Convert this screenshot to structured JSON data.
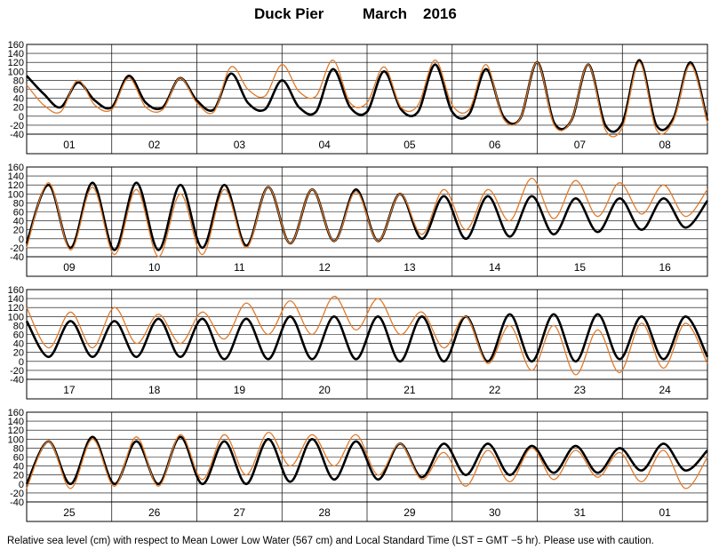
{
  "title": {
    "station": "Duck Pier",
    "month": "March",
    "year": "2016"
  },
  "caption": "Relative sea level (cm) with respect to Mean Lower Low Water (567 cm) and Local Standard Time (LST = GMT −5 hr). Please use with caution.",
  "colors": {
    "predicted": "#000000",
    "observed": "#e07a2a",
    "grid": "#000000"
  },
  "chart_data": {
    "type": "line",
    "ylabel": "",
    "ylim": [
      -40,
      160
    ],
    "yticks": [
      160,
      140,
      120,
      100,
      80,
      60,
      40,
      20,
      0,
      -20,
      -40
    ],
    "grid": true,
    "series": [
      {
        "name": "",
        "role": "predicted"
      },
      {
        "name": "",
        "role": "observed"
      }
    ],
    "panels": [
      {
        "days": [
          "01",
          "02",
          "03",
          "04",
          "05",
          "06",
          "07",
          "08"
        ],
        "predicted": [
          90,
          50,
          20,
          75,
          35,
          20,
          90,
          30,
          20,
          85,
          35,
          15,
          95,
          30,
          15,
          80,
          20,
          10,
          105,
          20,
          10,
          100,
          15,
          10,
          115,
          10,
          5,
          105,
          0,
          -5,
          120,
          -15,
          -10,
          115,
          -20,
          -15,
          125,
          -20,
          -5,
          120,
          -10
        ],
        "observed": [
          70,
          25,
          10,
          80,
          25,
          15,
          85,
          20,
          15,
          85,
          30,
          10,
          110,
          60,
          45,
          115,
          55,
          45,
          125,
          30,
          30,
          110,
          20,
          25,
          125,
          25,
          15,
          115,
          -5,
          -5,
          120,
          -20,
          -10,
          115,
          -30,
          -25,
          120,
          -30,
          -10,
          115,
          -15
        ]
      },
      {
        "days": [
          "09",
          "10",
          "11",
          "12",
          "13",
          "14",
          "15",
          "16"
        ],
        "predicted": [
          -10,
          120,
          -20,
          125,
          -25,
          125,
          -25,
          120,
          -20,
          120,
          -15,
          115,
          -10,
          110,
          -5,
          110,
          -5,
          100,
          0,
          95,
          0,
          95,
          5,
          95,
          10,
          90,
          15,
          90,
          20,
          90,
          25,
          85
        ],
        "observed": [
          -20,
          125,
          -25,
          115,
          -35,
          110,
          -40,
          100,
          -35,
          110,
          -20,
          115,
          -10,
          110,
          -5,
          105,
          -5,
          100,
          10,
          110,
          20,
          110,
          40,
          135,
          45,
          130,
          50,
          125,
          55,
          120,
          50,
          110
        ]
      },
      {
        "days": [
          "17",
          "18",
          "19",
          "20",
          "21",
          "22",
          "23",
          "24"
        ],
        "predicted": [
          90,
          10,
          90,
          10,
          90,
          10,
          95,
          10,
          95,
          5,
          95,
          5,
          100,
          5,
          100,
          5,
          100,
          0,
          100,
          0,
          100,
          0,
          105,
          0,
          105,
          0,
          105,
          5,
          100,
          5,
          100,
          10
        ],
        "observed": [
          120,
          30,
          110,
          30,
          120,
          40,
          105,
          40,
          110,
          50,
          130,
          60,
          135,
          60,
          145,
          70,
          140,
          60,
          110,
          30,
          100,
          -5,
          80,
          -20,
          80,
          -30,
          70,
          -25,
          85,
          -15,
          85,
          -5
        ]
      },
      {
        "days": [
          "25",
          "26",
          "27",
          "28",
          "29",
          "30",
          "31",
          "01"
        ],
        "predicted": [
          0,
          95,
          0,
          105,
          0,
          95,
          0,
          105,
          0,
          95,
          0,
          100,
          5,
          100,
          10,
          95,
          10,
          90,
          15,
          90,
          20,
          90,
          20,
          85,
          25,
          85,
          25,
          80,
          30,
          90,
          30,
          75
        ],
        "observed": [
          -10,
          95,
          -10,
          100,
          -5,
          105,
          -5,
          110,
          10,
          110,
          20,
          115,
          40,
          110,
          40,
          110,
          20,
          90,
          10,
          70,
          -5,
          75,
          5,
          80,
          10,
          75,
          15,
          70,
          5,
          75,
          -10,
          60
        ]
      }
    ]
  }
}
